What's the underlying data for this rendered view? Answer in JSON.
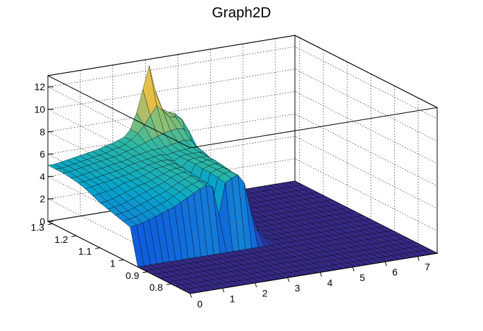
{
  "chart_data": {
    "type": "surface",
    "title": "Graph2D",
    "xlabel": "",
    "ylabel": "",
    "zlabel": "",
    "xlim": [
      0,
      7.6
    ],
    "ylim": [
      0.72,
      1.32
    ],
    "zlim": [
      0,
      13
    ],
    "x_ticks": [
      "0",
      "1",
      "2",
      "3",
      "4",
      "5",
      "6",
      "7"
    ],
    "x_tick_values": [
      0,
      1,
      2,
      3,
      4,
      5,
      6,
      7
    ],
    "y_ticks": [
      "0.8",
      "0.9",
      "1",
      "1.1",
      "1.2",
      "1.3"
    ],
    "y_tick_values": [
      0.8,
      0.9,
      1.0,
      1.1,
      1.2,
      1.3
    ],
    "z_ticks": [
      "0",
      "2",
      "4",
      "6",
      "8",
      "10",
      "12"
    ],
    "z_tick_values": [
      0,
      2,
      4,
      6,
      8,
      10,
      12
    ],
    "grid": true,
    "colormap": [
      "#352a87",
      "#0f5cdd",
      "#1481d6",
      "#06a4ca",
      "#2eb7a4",
      "#87bf77",
      "#d1bb59",
      "#fec832",
      "#f9fb0e"
    ],
    "z_values": [
      [
        0,
        0,
        0,
        0,
        0,
        0,
        0,
        0,
        0,
        0,
        0,
        0,
        0,
        0,
        0,
        0,
        0,
        0,
        0,
        0,
        0,
        0,
        0,
        0,
        0,
        0,
        0,
        0,
        0,
        0,
        0,
        0,
        0,
        0,
        0,
        0,
        0,
        0,
        0,
        0
      ],
      [
        0,
        0,
        0,
        0,
        0,
        0,
        0,
        0,
        0,
        0,
        0,
        0,
        0,
        0,
        0,
        0,
        0,
        0,
        0,
        0,
        0,
        0,
        0,
        0,
        0,
        0,
        0,
        0,
        0,
        0,
        0,
        0,
        0,
        0,
        0,
        0,
        0,
        0,
        0,
        0
      ],
      [
        0,
        0,
        0,
        0,
        0,
        0,
        0,
        0,
        0,
        0,
        0,
        0,
        0,
        0,
        0,
        0,
        0,
        0,
        0,
        0,
        0,
        0,
        0,
        0,
        0,
        0,
        0,
        0,
        0,
        0,
        0,
        0,
        0,
        0,
        0,
        0,
        0,
        0,
        0,
        0
      ],
      [
        0,
        0,
        0,
        0,
        0,
        0,
        0,
        0,
        0,
        0,
        0,
        0,
        0,
        0,
        0,
        0,
        0,
        0,
        0,
        0,
        0,
        0,
        0,
        0,
        0,
        0,
        0,
        0,
        0,
        0,
        0,
        0,
        0,
        0,
        0,
        0,
        0,
        0,
        0,
        0
      ],
      [
        0,
        0,
        0,
        0,
        0,
        0,
        0,
        0,
        0,
        0,
        0,
        0,
        0,
        0,
        0,
        0,
        0,
        0,
        0,
        0,
        0,
        0,
        0,
        0,
        0,
        0,
        0,
        0,
        0,
        0,
        0,
        0,
        0,
        0,
        0,
        0,
        0,
        0,
        0,
        0
      ],
      [
        0,
        0,
        0,
        0,
        0,
        0,
        0,
        0,
        0,
        0,
        0,
        0,
        0,
        0,
        0,
        0,
        0,
        0,
        0,
        0,
        0,
        0,
        0,
        0,
        0,
        0,
        0,
        0,
        0,
        0,
        0,
        0,
        0,
        0,
        0,
        0,
        0,
        0,
        0,
        0
      ],
      [
        0,
        0,
        0,
        0,
        0,
        0,
        0,
        0,
        0,
        0,
        0,
        0,
        0,
        0,
        0,
        0,
        0,
        0,
        0,
        0,
        0,
        0,
        0,
        0,
        0,
        0,
        0,
        0,
        0,
        0,
        0,
        0,
        0,
        0,
        0,
        0,
        0,
        0,
        0,
        0
      ],
      [
        0,
        0,
        0,
        0,
        0,
        0,
        0,
        0,
        0,
        0,
        0,
        0,
        0,
        0,
        0,
        0,
        0,
        0,
        0,
        0,
        0,
        0,
        0,
        0,
        0,
        0,
        0,
        0,
        0,
        0,
        0,
        0,
        0,
        0,
        0,
        0,
        0,
        0,
        0,
        0
      ],
      [
        3.2,
        3.3,
        3.4,
        3.6,
        3.8,
        4.0,
        4.2,
        4.4,
        4.7,
        5.0,
        5.3,
        5.6,
        5.8,
        5.6,
        3.0,
        5.8,
        6.1,
        6.3,
        5.5,
        3.0,
        1.2,
        0.4,
        0.1,
        0,
        0,
        0,
        0,
        0,
        0,
        0,
        0,
        0,
        0,
        0,
        0,
        0,
        0,
        0,
        0,
        0
      ],
      [
        3.4,
        3.5,
        3.6,
        3.8,
        4.0,
        4.2,
        4.4,
        4.6,
        4.9,
        5.2,
        5.5,
        5.7,
        5.9,
        5.7,
        3.4,
        5.9,
        6.2,
        6.3,
        5.8,
        3.6,
        1.6,
        0.6,
        0.2,
        0,
        0,
        0,
        0,
        0,
        0,
        0,
        0,
        0,
        0,
        0,
        0,
        0,
        0,
        0,
        0,
        0
      ],
      [
        3.6,
        3.7,
        3.8,
        4.0,
        4.2,
        4.4,
        4.6,
        4.8,
        5.0,
        5.3,
        5.6,
        5.8,
        6.0,
        5.8,
        3.8,
        6.0,
        6.2,
        6.3,
        6.0,
        4.2,
        2.2,
        0.9,
        0.3,
        0.1,
        0,
        0,
        0,
        0,
        0,
        0,
        0,
        0,
        0,
        0,
        0,
        0,
        0,
        0,
        0,
        0
      ],
      [
        3.8,
        3.9,
        4.0,
        4.2,
        4.4,
        4.6,
        4.8,
        5.0,
        5.2,
        5.4,
        5.7,
        5.9,
        6.0,
        5.9,
        4.4,
        6.0,
        6.2,
        6.3,
        6.1,
        4.8,
        2.8,
        1.2,
        0.4,
        0.1,
        0,
        0,
        0,
        0,
        0,
        0,
        0,
        0,
        0,
        0,
        0,
        0,
        0,
        0,
        0,
        0
      ],
      [
        4.0,
        4.1,
        4.2,
        4.4,
        4.6,
        4.8,
        5.0,
        5.1,
        5.3,
        5.5,
        5.7,
        5.9,
        6.0,
        6.0,
        5.0,
        6.1,
        6.2,
        6.3,
        6.2,
        5.3,
        3.4,
        1.6,
        0.6,
        0.2,
        0,
        0,
        0,
        0,
        0,
        0,
        0,
        0,
        0,
        0,
        0,
        0,
        0,
        0,
        0,
        0
      ],
      [
        4.3,
        4.4,
        4.5,
        4.6,
        4.8,
        5.0,
        5.1,
        5.2,
        5.4,
        5.6,
        5.8,
        5.9,
        6.0,
        6.0,
        5.5,
        6.1,
        6.2,
        6.2,
        6.2,
        5.7,
        4.0,
        2.0,
        0.8,
        0.2,
        0,
        0,
        0,
        0,
        0,
        0,
        0,
        0,
        0,
        0,
        0,
        0,
        0,
        0,
        0,
        0
      ],
      [
        4.6,
        4.7,
        4.8,
        4.9,
        5.0,
        5.1,
        5.2,
        5.3,
        5.5,
        5.6,
        5.8,
        5.9,
        6.0,
        6.0,
        5.8,
        6.1,
        6.2,
        6.2,
        6.2,
        6.0,
        4.6,
        2.5,
        1.0,
        0.3,
        0,
        0,
        0,
        0,
        0,
        0,
        0,
        0,
        0,
        0,
        0,
        0,
        0,
        0,
        0,
        0
      ],
      [
        4.8,
        4.8,
        4.9,
        5.0,
        5.1,
        5.2,
        5.3,
        5.4,
        5.6,
        5.7,
        5.8,
        5.9,
        6.0,
        6.1,
        6.0,
        6.1,
        6.2,
        6.2,
        6.3,
        6.2,
        5.2,
        3.0,
        1.2,
        0.4,
        0,
        0,
        0,
        0,
        0,
        0,
        0,
        0,
        0,
        0,
        0,
        0,
        0,
        0,
        0,
        0
      ],
      [
        4.9,
        4.9,
        5.0,
        5.1,
        5.2,
        5.3,
        5.4,
        5.5,
        5.6,
        5.7,
        5.9,
        6.0,
        6.1,
        6.2,
        6.2,
        6.3,
        6.4,
        6.5,
        6.6,
        6.5,
        5.8,
        3.6,
        1.5,
        0.5,
        0,
        0,
        0,
        0,
        0,
        0,
        0,
        0,
        0,
        0,
        0,
        0,
        0,
        0,
        0,
        0
      ],
      [
        5.0,
        5.0,
        5.1,
        5.2,
        5.3,
        5.4,
        5.5,
        5.6,
        5.7,
        5.8,
        6.0,
        6.1,
        6.3,
        6.5,
        6.7,
        6.9,
        7.1,
        7.2,
        7.3,
        7.2,
        6.8,
        4.4,
        1.8,
        0.6,
        0,
        0,
        0,
        0,
        0,
        0,
        0,
        0,
        0,
        0,
        0,
        0,
        0,
        0,
        0,
        0
      ],
      [
        5.0,
        5.0,
        5.1,
        5.2,
        5.3,
        5.4,
        5.5,
        5.6,
        5.7,
        5.9,
        6.0,
        6.2,
        6.5,
        7.0,
        7.6,
        8.4,
        9.2,
        8.6,
        8.0,
        7.9,
        7.6,
        5.2,
        2.1,
        0.7,
        0,
        0,
        0,
        0,
        0,
        0,
        0,
        0,
        0,
        0,
        0,
        0,
        0,
        0,
        0,
        0
      ],
      [
        5.0,
        5.0,
        5.1,
        5.2,
        5.3,
        5.4,
        5.5,
        5.6,
        5.7,
        5.9,
        6.0,
        6.2,
        6.4,
        7.0,
        8.4,
        10.4,
        12.4,
        10.0,
        8.4,
        8.0,
        7.8,
        6.0,
        2.4,
        0.8,
        0,
        0,
        0,
        0,
        0,
        0,
        0,
        0,
        0,
        0,
        0,
        0,
        0,
        0,
        0,
        0
      ]
    ]
  }
}
